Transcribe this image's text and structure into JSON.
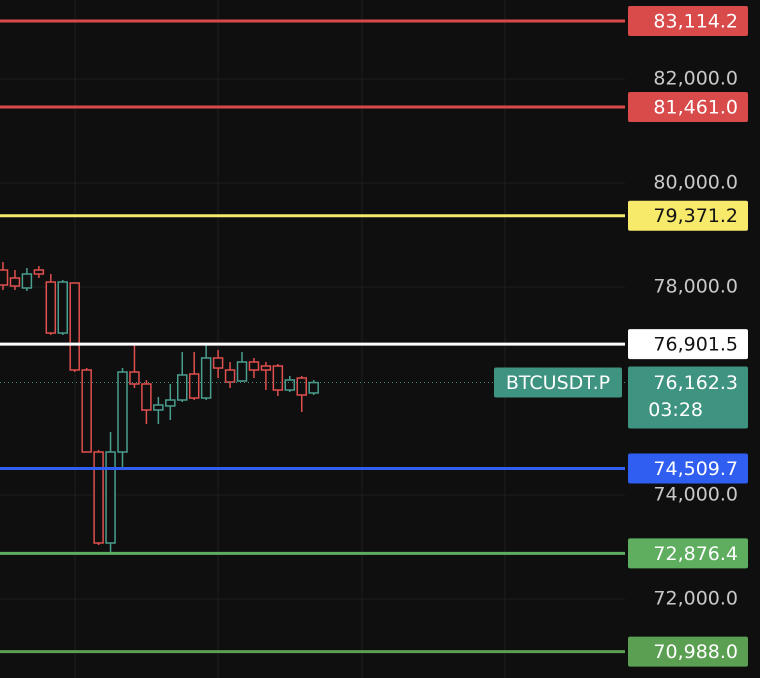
{
  "chart_data": {
    "type": "candlestick",
    "open": [
      78327,
      78173,
      77981,
      78327,
      78096,
      77115,
      78077,
      76404,
      74827,
      73077,
      74827,
      76365,
      76135,
      75635,
      75712,
      75827,
      76327,
      75865,
      76635,
      76404,
      76192,
      76558,
      76481,
      76481,
      76019,
      76250,
      75962
    ],
    "high": [
      78481,
      78327,
      78365,
      78404,
      78250,
      78135,
      78077,
      76442,
      74865,
      75212,
      76442,
      76885,
      76212,
      75885,
      76135,
      76750,
      76750,
      76885,
      76788,
      76558,
      76750,
      76635,
      76558,
      76519,
      76288,
      76288,
      76212
    ],
    "low": [
      77942,
      77942,
      77923,
      78173,
      77077,
      77077,
      76365,
      74827,
      73038,
      72885,
      74519,
      76058,
      75365,
      75365,
      75442,
      75788,
      75827,
      75827,
      76250,
      76058,
      76173,
      76250,
      76019,
      75904,
      75981,
      75596,
      75923
    ],
    "close": [
      78038,
      78019,
      78250,
      78250,
      77115,
      78096,
      76404,
      74827,
      73077,
      74827,
      76365,
      76135,
      75635,
      75731,
      75827,
      76308,
      75865,
      76635,
      76442,
      76173,
      76558,
      76404,
      76404,
      76019,
      76212,
      75923,
      76162.3
    ],
    "up_color": "#4a9e8f",
    "down_color": "#e0504e",
    "ylim": [
      70481,
      83519
    ],
    "yticks": [
      {
        "value": 72000,
        "label": "72,000.0"
      },
      {
        "value": 74000,
        "label": "74,000.0"
      },
      {
        "value": 78000,
        "label": "78,000.0"
      },
      {
        "value": 80000,
        "label": "80,000.0"
      },
      {
        "value": 82000,
        "label": "82,000.0"
      }
    ],
    "grid": true,
    "price_lines": [
      {
        "value": 83114.2,
        "label": "83,114.2",
        "color": "#d94a4a"
      },
      {
        "value": 81461.0,
        "label": "81,461.0",
        "color": "#d94a4a"
      },
      {
        "value": 79371.2,
        "label": "79,371.2",
        "color": "#f7ea6a"
      },
      {
        "value": 76901.5,
        "label": "76,901.5",
        "color": "#ffffff"
      },
      {
        "value": 74509.7,
        "label": "74,509.7",
        "color": "#2f5ef0"
      },
      {
        "value": 72876.4,
        "label": "72,876.4",
        "color": "#5fae5f"
      },
      {
        "value": 70988.0,
        "label": "70,988.0",
        "color": "#5a9f52"
      }
    ],
    "last_price": {
      "value": 76162.3,
      "label": "76,162.3",
      "symbol": "BTCUSDT.P",
      "countdown": "03:28",
      "color": "#3f9381"
    }
  }
}
